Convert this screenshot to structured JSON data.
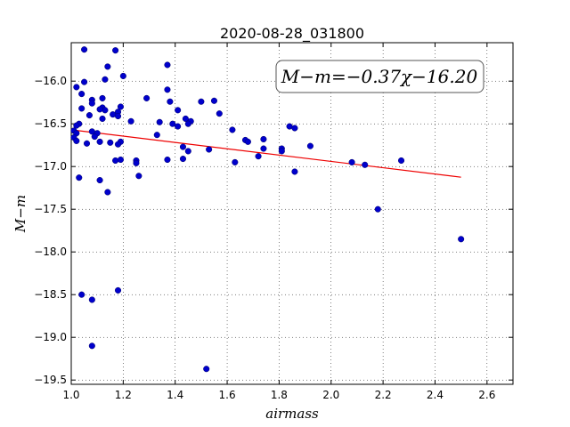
{
  "chart_data": {
    "type": "scatter",
    "title": "2020-08-28_031800",
    "xlabel": "airmass",
    "ylabel": "M−m",
    "xlim": [
      1.0,
      2.7
    ],
    "ylim": [
      -19.55,
      -15.55
    ],
    "y_inverted": false,
    "grid": true,
    "x_ticks": [
      1.0,
      1.2,
      1.4,
      1.6,
      1.8,
      2.0,
      2.2,
      2.4,
      2.6
    ],
    "x_tick_labels": [
      "1.0",
      "1.2",
      "1.4",
      "1.6",
      "1.8",
      "2.0",
      "2.2",
      "2.4",
      "2.6"
    ],
    "y_ticks": [
      -16.0,
      -16.5,
      -17.0,
      -17.5,
      -18.0,
      -18.5,
      -19.0,
      -19.5
    ],
    "y_tick_labels": [
      "−16.0",
      "−16.5",
      "−17.0",
      "−17.5",
      "−18.0",
      "−18.5",
      "−19.0",
      "−19.5"
    ],
    "annotation": "M−m=−0.37χ−16.20",
    "annotation_placement": "top-right",
    "colors": {
      "points": "#0000cc",
      "fit_line": "#ee0000"
    },
    "fit_line": {
      "slope": -0.37,
      "intercept": -16.2,
      "x_range": [
        1.02,
        2.5
      ]
    },
    "points": [
      [
        1.05,
        -15.63
      ],
      [
        1.17,
        -15.64
      ],
      [
        1.14,
        -15.83
      ],
      [
        1.37,
        -15.81
      ],
      [
        1.2,
        -15.94
      ],
      [
        1.13,
        -15.98
      ],
      [
        1.05,
        -16.01
      ],
      [
        1.02,
        -16.07
      ],
      [
        1.04,
        -16.15
      ],
      [
        1.37,
        -16.1
      ],
      [
        1.12,
        -16.2
      ],
      [
        1.08,
        -16.22
      ],
      [
        1.08,
        -16.26
      ],
      [
        1.29,
        -16.2
      ],
      [
        1.38,
        -16.24
      ],
      [
        1.5,
        -16.24
      ],
      [
        1.55,
        -16.23
      ],
      [
        1.04,
        -16.32
      ],
      [
        1.12,
        -16.31
      ],
      [
        1.13,
        -16.34
      ],
      [
        1.11,
        -16.33
      ],
      [
        1.19,
        -16.3
      ],
      [
        1.18,
        -16.36
      ],
      [
        1.16,
        -16.39
      ],
      [
        1.18,
        -16.41
      ],
      [
        1.07,
        -16.4
      ],
      [
        1.41,
        -16.34
      ],
      [
        1.57,
        -16.38
      ],
      [
        1.12,
        -16.44
      ],
      [
        1.03,
        -16.5
      ],
      [
        1.02,
        -16.52
      ],
      [
        1.23,
        -16.47
      ],
      [
        1.34,
        -16.48
      ],
      [
        1.39,
        -16.5
      ],
      [
        1.41,
        -16.53
      ],
      [
        1.44,
        -16.44
      ],
      [
        1.46,
        -16.47
      ],
      [
        1.45,
        -16.5
      ],
      [
        1.62,
        -16.57
      ],
      [
        1.84,
        -16.53
      ],
      [
        1.86,
        -16.55
      ],
      [
        1.01,
        -16.58
      ],
      [
        1.02,
        -16.61
      ],
      [
        1.08,
        -16.59
      ],
      [
        1.1,
        -16.61
      ],
      [
        1.01,
        -16.66
      ],
      [
        1.02,
        -16.7
      ],
      [
        1.06,
        -16.73
      ],
      [
        1.09,
        -16.65
      ],
      [
        1.11,
        -16.71
      ],
      [
        1.15,
        -16.72
      ],
      [
        1.19,
        -16.71
      ],
      [
        1.18,
        -16.74
      ],
      [
        1.33,
        -16.63
      ],
      [
        1.43,
        -16.77
      ],
      [
        1.45,
        -16.82
      ],
      [
        1.53,
        -16.8
      ],
      [
        1.67,
        -16.69
      ],
      [
        1.68,
        -16.71
      ],
      [
        1.74,
        -16.68
      ],
      [
        1.74,
        -16.79
      ],
      [
        1.81,
        -16.79
      ],
      [
        1.81,
        -16.82
      ],
      [
        1.92,
        -16.76
      ],
      [
        1.17,
        -16.93
      ],
      [
        1.19,
        -16.92
      ],
      [
        1.25,
        -16.93
      ],
      [
        1.25,
        -16.96
      ],
      [
        1.37,
        -16.92
      ],
      [
        1.43,
        -16.91
      ],
      [
        1.63,
        -16.95
      ],
      [
        1.72,
        -16.88
      ],
      [
        2.08,
        -16.95
      ],
      [
        2.13,
        -16.98
      ],
      [
        2.27,
        -16.93
      ],
      [
        1.26,
        -17.11
      ],
      [
        1.03,
        -17.13
      ],
      [
        1.11,
        -17.16
      ],
      [
        1.86,
        -17.06
      ],
      [
        1.14,
        -17.3
      ],
      [
        2.18,
        -17.5
      ],
      [
        2.5,
        -17.85
      ],
      [
        1.04,
        -18.5
      ],
      [
        1.18,
        -18.45
      ],
      [
        1.08,
        -18.56
      ],
      [
        1.08,
        -19.1
      ],
      [
        1.52,
        -19.37
      ]
    ]
  }
}
